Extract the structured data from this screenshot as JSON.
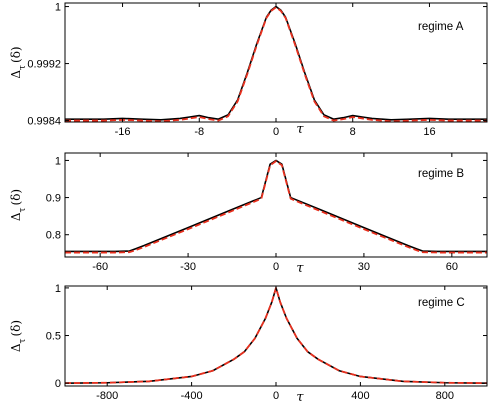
{
  "colors": {
    "exact": "#000000",
    "approx": "#e8301e",
    "frame": "#000000"
  },
  "chart_data": [
    {
      "type": "line",
      "annotation": "regime A",
      "xlabel": "τ",
      "ylabel_main": "Δ",
      "ylabel_sub": "τ",
      "ylabel_arg": "(δ)",
      "xlim": [
        -22,
        22
      ],
      "ylim": [
        0.99838,
        1.00005
      ],
      "xticks": [
        -16,
        -8,
        0,
        8,
        16
      ],
      "xtick_labels": [
        "-16",
        "-8",
        "0",
        "8",
        "16"
      ],
      "yticks": [
        0.9984,
        0.9992,
        1
      ],
      "ytick_labels": [
        "0.9984",
        "0.9992",
        "1"
      ],
      "series": [
        {
          "style": "solid",
          "color": "#000000",
          "x": [
            -22,
            -20,
            -18,
            -16,
            -14,
            -12,
            -10,
            -9,
            -8,
            -7,
            -6,
            -5,
            -4,
            -3,
            -2,
            -1,
            -0.5,
            0,
            0.5,
            1,
            2,
            3,
            4,
            5,
            6,
            7,
            8,
            9,
            10,
            12,
            14,
            16,
            18,
            20,
            22
          ],
          "y": [
            0.99842,
            0.99842,
            0.99842,
            0.99843,
            0.99842,
            0.99841,
            0.99843,
            0.99845,
            0.99847,
            0.99844,
            0.99842,
            0.99848,
            0.99869,
            0.99907,
            0.99948,
            0.99985,
            0.99995,
            1.0,
            0.99995,
            0.99985,
            0.99948,
            0.99907,
            0.99869,
            0.99848,
            0.99842,
            0.99844,
            0.99847,
            0.99845,
            0.99843,
            0.99841,
            0.99842,
            0.99843,
            0.99842,
            0.99842,
            0.99842
          ]
        },
        {
          "style": "dashed",
          "color": "#e8301e",
          "x": [
            -22,
            -20,
            -18,
            -16,
            -14,
            -12,
            -10,
            -9,
            -8,
            -7,
            -6,
            -5,
            -4,
            -3,
            -2,
            -1,
            -0.5,
            0,
            0.5,
            1,
            2,
            3,
            4,
            5,
            6,
            7,
            8,
            9,
            10,
            12,
            14,
            16,
            18,
            20,
            22
          ],
          "y": [
            0.9984,
            0.9984,
            0.9984,
            0.99841,
            0.9984,
            0.99839,
            0.99841,
            0.99843,
            0.99845,
            0.99842,
            0.9984,
            0.99846,
            0.99867,
            0.99905,
            0.99946,
            0.99984,
            0.99994,
            0.99999,
            0.99994,
            0.99984,
            0.99946,
            0.99905,
            0.99867,
            0.99846,
            0.9984,
            0.99842,
            0.99845,
            0.99843,
            0.99841,
            0.99839,
            0.9984,
            0.99841,
            0.9984,
            0.9984,
            0.9984
          ]
        }
      ]
    },
    {
      "type": "line",
      "annotation": "regime B",
      "xlabel": "τ",
      "ylabel_main": "Δ",
      "ylabel_sub": "τ",
      "ylabel_arg": "(δ)",
      "xlim": [
        -72,
        72
      ],
      "ylim": [
        0.74,
        1.02
      ],
      "xticks": [
        -60,
        -30,
        0,
        30,
        60
      ],
      "xtick_labels": [
        "-60",
        "-30",
        "0",
        "30",
        "60"
      ],
      "yticks": [
        0.8,
        0.9,
        1
      ],
      "ytick_labels": [
        "0.8",
        "0.9",
        "1"
      ],
      "series": [
        {
          "style": "solid",
          "color": "#000000",
          "x": [
            -72,
            -55,
            -50,
            -48,
            -45,
            -30,
            -15,
            -5,
            -2,
            0,
            2,
            5,
            15,
            30,
            45,
            48,
            50,
            55,
            72
          ],
          "y": [
            0.755,
            0.755,
            0.756,
            0.762,
            0.771,
            0.819,
            0.868,
            0.9,
            0.99,
            1.0,
            0.99,
            0.9,
            0.868,
            0.819,
            0.771,
            0.762,
            0.756,
            0.755,
            0.755
          ]
        },
        {
          "style": "dashed",
          "color": "#e8301e",
          "x": [
            -72,
            -55,
            -50,
            -48,
            -45,
            -30,
            -15,
            -5,
            -2,
            0,
            2,
            5,
            15,
            30,
            45,
            48,
            50,
            55,
            72
          ],
          "y": [
            0.752,
            0.752,
            0.753,
            0.758,
            0.767,
            0.815,
            0.864,
            0.897,
            0.987,
            0.998,
            0.987,
            0.897,
            0.864,
            0.815,
            0.767,
            0.758,
            0.753,
            0.752,
            0.752
          ]
        }
      ]
    },
    {
      "type": "line",
      "annotation": "regime C",
      "xlabel": "τ",
      "ylabel_main": "Δ",
      "ylabel_sub": "τ",
      "ylabel_arg": "(δ)",
      "xlim": [
        -1000,
        1000
      ],
      "ylim": [
        -0.03,
        1.02
      ],
      "xticks": [
        -800,
        -400,
        0,
        400,
        800
      ],
      "xtick_labels": [
        "-800",
        "-400",
        "0",
        "400",
        "800"
      ],
      "yticks": [
        0,
        0.5,
        1
      ],
      "ytick_labels": [
        "0",
        "0.5",
        "1"
      ],
      "series": [
        {
          "style": "solid",
          "color": "#000000",
          "x": [
            -1000,
            -800,
            -600,
            -400,
            -300,
            -200,
            -150,
            -100,
            -50,
            -20,
            0,
            20,
            50,
            100,
            150,
            200,
            300,
            400,
            600,
            800,
            1000
          ],
          "y": [
            0.0,
            0.004,
            0.019,
            0.07,
            0.13,
            0.25,
            0.33,
            0.47,
            0.68,
            0.85,
            1.0,
            0.85,
            0.68,
            0.47,
            0.33,
            0.25,
            0.13,
            0.07,
            0.019,
            0.004,
            0.0
          ]
        },
        {
          "style": "dashed",
          "color": "#e8301e",
          "x": [
            -1000,
            -800,
            -600,
            -400,
            -300,
            -200,
            -150,
            -100,
            -50,
            -20,
            0,
            20,
            50,
            100,
            150,
            200,
            300,
            400,
            600,
            800,
            1000
          ],
          "y": [
            0.0,
            0.004,
            0.019,
            0.07,
            0.13,
            0.25,
            0.33,
            0.47,
            0.68,
            0.85,
            1.0,
            0.85,
            0.68,
            0.47,
            0.33,
            0.25,
            0.13,
            0.07,
            0.019,
            0.004,
            0.0
          ]
        }
      ]
    }
  ]
}
